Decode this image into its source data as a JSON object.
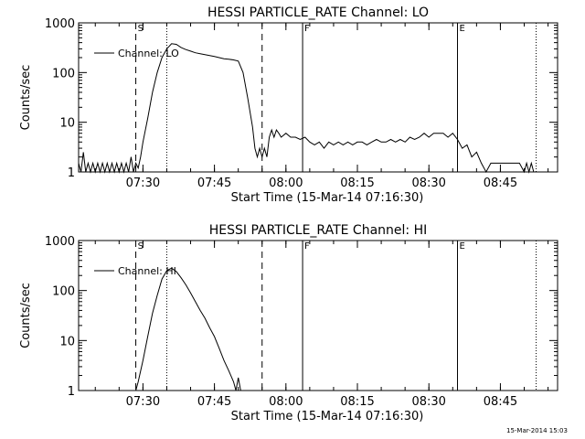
{
  "chart_data": [
    {
      "type": "line",
      "title": "HESSI PARTICLE_RATE Channel: LO",
      "xlabel": "Start Time (15-Mar-14 07:16:30)",
      "ylabel": "Counts/sec",
      "y_scale": "log",
      "ylim": [
        1,
        1000
      ],
      "xlim": [
        "07:16:30",
        "08:57:00"
      ],
      "x_ticks": [
        "07:30",
        "07:45",
        "08:00",
        "08:15",
        "08:30",
        "08:45"
      ],
      "y_ticks": [
        "1",
        "10",
        "100",
        "1000"
      ],
      "grid": false,
      "legend": {
        "entries": [
          "Channel: LO"
        ],
        "position": "top-left"
      },
      "markers": [
        {
          "time": "07:28:30",
          "style": "dashed",
          "label": "S"
        },
        {
          "time": "07:35:00",
          "style": "dotted",
          "label": ""
        },
        {
          "time": "07:55:00",
          "style": "dashed",
          "label": ""
        },
        {
          "time": "08:03:30",
          "style": "solid",
          "label": "F"
        },
        {
          "time": "08:36:00",
          "style": "solid",
          "label": "E"
        },
        {
          "time": "08:52:30",
          "style": "dotted",
          "label": ""
        }
      ],
      "series": [
        {
          "name": "Channel: LO",
          "points": [
            [
              "07:16:30",
              1.5
            ],
            [
              "07:17:00",
              1.0
            ],
            [
              "07:17:30",
              2.5
            ],
            [
              "07:18:00",
              1.0
            ],
            [
              "07:18:30",
              1.5
            ],
            [
              "07:19:00",
              1.0
            ],
            [
              "07:19:30",
              1.5
            ],
            [
              "07:20:00",
              1.0
            ],
            [
              "07:20:30",
              1.5
            ],
            [
              "07:21:00",
              1.0
            ],
            [
              "07:21:30",
              1.5
            ],
            [
              "07:22:00",
              1.0
            ],
            [
              "07:22:30",
              1.5
            ],
            [
              "07:23:00",
              1.0
            ],
            [
              "07:23:30",
              1.5
            ],
            [
              "07:24:00",
              1.0
            ],
            [
              "07:24:30",
              1.5
            ],
            [
              "07:25:00",
              1.0
            ],
            [
              "07:25:30",
              1.5
            ],
            [
              "07:26:00",
              1.0
            ],
            [
              "07:26:30",
              1.5
            ],
            [
              "07:27:00",
              1.0
            ],
            [
              "07:27:30",
              2.0
            ],
            [
              "07:28:00",
              1.0
            ],
            [
              "07:28:30",
              1.5
            ],
            [
              "07:29:00",
              1.2
            ],
            [
              "07:29:30",
              2.0
            ],
            [
              "07:30:00",
              4.0
            ],
            [
              "07:31:00",
              12
            ],
            [
              "07:32:00",
              40
            ],
            [
              "07:33:00",
              100
            ],
            [
              "07:34:00",
              200
            ],
            [
              "07:35:00",
              300
            ],
            [
              "07:36:00",
              380
            ],
            [
              "07:37:00",
              370
            ],
            [
              "07:38:00",
              320
            ],
            [
              "07:39:00",
              290
            ],
            [
              "07:40:00",
              270
            ],
            [
              "07:41:00",
              250
            ],
            [
              "07:42:00",
              240
            ],
            [
              "07:43:00",
              230
            ],
            [
              "07:44:00",
              220
            ],
            [
              "07:45:00",
              210
            ],
            [
              "07:46:00",
              200
            ],
            [
              "07:47:00",
              190
            ],
            [
              "07:48:00",
              185
            ],
            [
              "07:49:00",
              180
            ],
            [
              "07:50:00",
              170
            ],
            [
              "07:51:00",
              100
            ],
            [
              "07:52:00",
              30
            ],
            [
              "07:53:00",
              8
            ],
            [
              "07:53:30",
              3
            ],
            [
              "07:54:00",
              2.0
            ],
            [
              "07:54:30",
              3.0
            ],
            [
              "07:55:00",
              2.0
            ],
            [
              "07:55:30",
              3.0
            ],
            [
              "07:56:00",
              2.0
            ],
            [
              "07:56:30",
              5.0
            ],
            [
              "07:57:00",
              7.0
            ],
            [
              "07:57:30",
              5.0
            ],
            [
              "07:58:00",
              7.0
            ],
            [
              "07:58:30",
              6.0
            ],
            [
              "07:59:00",
              5.0
            ],
            [
              "08:00:00",
              6.0
            ],
            [
              "08:01:00",
              5.0
            ],
            [
              "08:02:00",
              5.0
            ],
            [
              "08:03:00",
              4.5
            ],
            [
              "08:04:00",
              5.0
            ],
            [
              "08:05:00",
              4.0
            ],
            [
              "08:06:00",
              3.5
            ],
            [
              "08:07:00",
              4.0
            ],
            [
              "08:08:00",
              3.0
            ],
            [
              "08:09:00",
              4.0
            ],
            [
              "08:10:00",
              3.5
            ],
            [
              "08:11:00",
              4.0
            ],
            [
              "08:12:00",
              3.5
            ],
            [
              "08:13:00",
              4.0
            ],
            [
              "08:14:00",
              3.5
            ],
            [
              "08:15:00",
              4.0
            ],
            [
              "08:16:00",
              4.0
            ],
            [
              "08:17:00",
              3.5
            ],
            [
              "08:18:00",
              4.0
            ],
            [
              "08:19:00",
              4.5
            ],
            [
              "08:20:00",
              4.0
            ],
            [
              "08:21:00",
              4.0
            ],
            [
              "08:22:00",
              4.5
            ],
            [
              "08:23:00",
              4.0
            ],
            [
              "08:24:00",
              4.5
            ],
            [
              "08:25:00",
              4.0
            ],
            [
              "08:26:00",
              5.0
            ],
            [
              "08:27:00",
              4.5
            ],
            [
              "08:28:00",
              5.0
            ],
            [
              "08:29:00",
              6.0
            ],
            [
              "08:30:00",
              5.0
            ],
            [
              "08:31:00",
              6.0
            ],
            [
              "08:32:00",
              6.0
            ],
            [
              "08:33:00",
              6.0
            ],
            [
              "08:34:00",
              5.0
            ],
            [
              "08:35:00",
              6.0
            ],
            [
              "08:36:00",
              4.5
            ],
            [
              "08:37:00",
              3.0
            ],
            [
              "08:38:00",
              3.5
            ],
            [
              "08:39:00",
              2.0
            ],
            [
              "08:40:00",
              2.5
            ],
            [
              "08:41:00",
              1.5
            ],
            [
              "08:42:00",
              1.0
            ],
            [
              "08:43:00",
              1.5
            ],
            [
              "08:44:00",
              1.5
            ],
            [
              "08:45:00",
              1.5
            ],
            [
              "08:46:00",
              1.5
            ],
            [
              "08:47:00",
              1.5
            ],
            [
              "08:48:00",
              1.5
            ],
            [
              "08:49:00",
              1.5
            ],
            [
              "08:50:00",
              1.0
            ],
            [
              "08:50:30",
              1.5
            ],
            [
              "08:51:00",
              1.0
            ],
            [
              "08:51:30",
              1.5
            ],
            [
              "08:52:00",
              1.0
            ]
          ]
        }
      ]
    },
    {
      "type": "line",
      "title": "HESSI PARTICLE_RATE Channel: HI",
      "xlabel": "Start Time (15-Mar-14 07:16:30)",
      "ylabel": "Counts/sec",
      "y_scale": "log",
      "ylim": [
        1,
        1000
      ],
      "xlim": [
        "07:16:30",
        "08:57:00"
      ],
      "x_ticks": [
        "07:30",
        "07:45",
        "08:00",
        "08:15",
        "08:30",
        "08:45"
      ],
      "y_ticks": [
        "1",
        "10",
        "100",
        "1000"
      ],
      "grid": false,
      "legend": {
        "entries": [
          "Channel: HI"
        ],
        "position": "top-left"
      },
      "markers": [
        {
          "time": "07:28:30",
          "style": "dashed",
          "label": "S"
        },
        {
          "time": "07:35:00",
          "style": "dotted",
          "label": ""
        },
        {
          "time": "07:55:00",
          "style": "dashed",
          "label": ""
        },
        {
          "time": "08:03:30",
          "style": "solid",
          "label": "F"
        },
        {
          "time": "08:36:00",
          "style": "solid",
          "label": "E"
        },
        {
          "time": "08:52:30",
          "style": "dotted",
          "label": ""
        }
      ],
      "series": [
        {
          "name": "Channel: HI",
          "points": [
            [
              "07:28:30",
              1.0
            ],
            [
              "07:29:00",
              1.5
            ],
            [
              "07:30:00",
              4.0
            ],
            [
              "07:31:00",
              12
            ],
            [
              "07:32:00",
              35
            ],
            [
              "07:33:00",
              80
            ],
            [
              "07:34:00",
              170
            ],
            [
              "07:35:00",
              250
            ],
            [
              "07:36:00",
              280
            ],
            [
              "07:37:00",
              240
            ],
            [
              "07:38:00",
              180
            ],
            [
              "07:39:00",
              130
            ],
            [
              "07:40:00",
              90
            ],
            [
              "07:41:00",
              60
            ],
            [
              "07:42:00",
              40
            ],
            [
              "07:43:00",
              28
            ],
            [
              "07:44:00",
              18
            ],
            [
              "07:45:00",
              12
            ],
            [
              "07:46:00",
              7
            ],
            [
              "07:47:00",
              4
            ],
            [
              "07:48:00",
              2.5
            ],
            [
              "07:49:00",
              1.5
            ],
            [
              "07:49:30",
              1.0
            ],
            [
              "07:50:00",
              1.8
            ],
            [
              "07:50:30",
              1.0
            ]
          ]
        }
      ]
    }
  ],
  "footer": {
    "timestamp": "15-Mar-2014 15:03"
  }
}
